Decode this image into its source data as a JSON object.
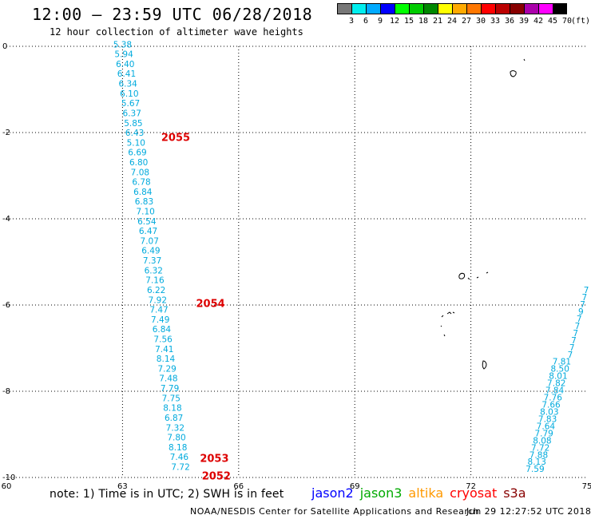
{
  "header": {
    "title": "12:00 – 23:59 UTC 06/28/2018",
    "subtitle": "12 hour collection of altimeter wave heights"
  },
  "legend": {
    "swatch_colors": [
      "#777777",
      "#00eeee",
      "#00aaff",
      "#0000ff",
      "#00ff00",
      "#00cc00",
      "#008800",
      "#ffff00",
      "#ffaa00",
      "#ff7700",
      "#ff0000",
      "#bb0000",
      "#880000",
      "#aa00aa",
      "#ff00ff",
      "#000000"
    ],
    "tick_labels": [
      "3",
      "6",
      "9",
      "12",
      "15",
      "18",
      "21",
      "24",
      "27",
      "30",
      "33",
      "36",
      "39",
      "42",
      "45",
      "70"
    ],
    "unit": "(ft)"
  },
  "map": {
    "x_ticks": [
      "60",
      "63",
      "66",
      "69",
      "72",
      "75"
    ],
    "y_ticks": [
      "0",
      "-2",
      "-4",
      "-6",
      "-8",
      "-10"
    ],
    "x_range": [
      60,
      75
    ],
    "y_range": [
      -10,
      0
    ],
    "wave_color": "#00aadd",
    "time_color": "#dd0000",
    "track_west": {
      "values": [
        "5.38",
        "5.94",
        "6.40",
        "6.41",
        "6.34",
        "6.10",
        "5.67",
        "6.37",
        "5.85",
        "6.43",
        "5.10",
        "6.69",
        "6.80",
        "7.08",
        "6.78",
        "6.84",
        "6.83",
        "7.10",
        "6.54",
        "6.47",
        "7.07",
        "6.49",
        "7.37",
        "6.32",
        "7.16",
        "6.22",
        "7.92",
        "7.47",
        "7.49",
        "6.84",
        "7.56",
        "7.41",
        "8.14",
        "7.29",
        "7.48",
        "7.79",
        "7.75",
        "8.18",
        "6.87",
        "7.32",
        "7.80",
        "8.18",
        "7.46",
        "7.72"
      ],
      "lon_start": 63.0,
      "lon_end": 64.5,
      "lat_start": 0.05,
      "lat_end": -9.75
    },
    "track_east": {
      "values": [
        "7",
        "7",
        "7",
        "9",
        "7",
        "7",
        "7",
        "7",
        "7",
        "7",
        "7.81",
        "8.50",
        "8.01",
        "7.82",
        "7.84",
        "7.76",
        "7.66",
        "8.03",
        "7.83",
        "7.64",
        "7.79",
        "8.08",
        "7.72",
        "7.88",
        "8.13",
        "7.59"
      ],
      "lon_start": 75.05,
      "lon_end": 73.9,
      "lat_start": -5.65,
      "lat_end": -9.8
    },
    "time_labels": [
      {
        "text": "2055",
        "lon": 64.0,
        "lat": -2.1
      },
      {
        "text": "2054",
        "lon": 64.9,
        "lat": -5.95
      },
      {
        "text": "2053",
        "lon": 65.0,
        "lat": -9.55
      },
      {
        "text": "2052",
        "lon": 65.05,
        "lat": -9.95
      }
    ]
  },
  "footer": {
    "note": "note: 1) Time is in UTC; 2) SWH is in feet",
    "satellites": [
      {
        "name": "jason2",
        "color": "#0000ff"
      },
      {
        "name": "jason3",
        "color": "#00aa00"
      },
      {
        "name": "altika",
        "color": "#ff9900"
      },
      {
        "name": "cryosat",
        "color": "#ff0000"
      },
      {
        "name": "s3a",
        "color": "#880000"
      }
    ],
    "credit": "NOAA/NESDIS Center for Satellite Applications and Research",
    "timestamp": "Jun 29 12:27:52 UTC 2018"
  }
}
